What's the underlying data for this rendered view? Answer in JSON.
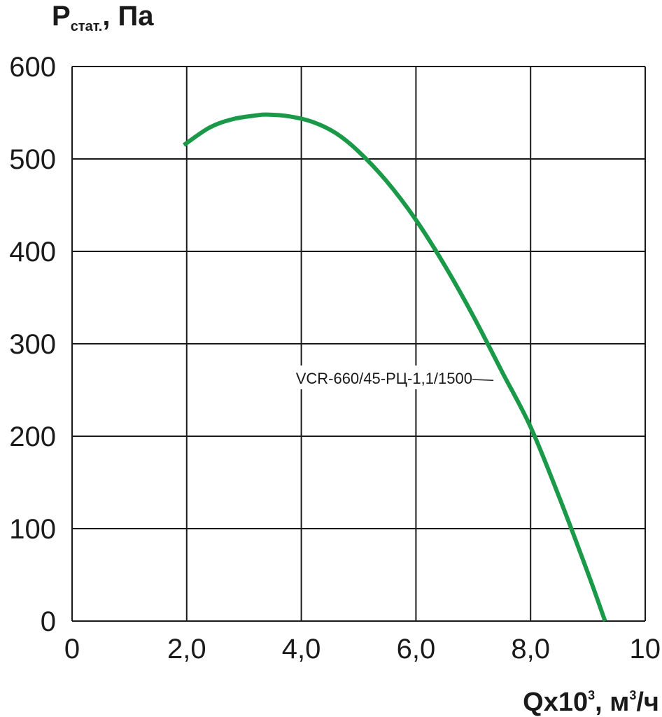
{
  "chart_data": {
    "type": "line",
    "ylabel": {
      "main": "P",
      "sub": "стат.",
      "tail": ", Па"
    },
    "xlabel": {
      "main": "Qx10",
      "sup1": "3",
      "mid": ", м",
      "sup2": "3",
      "tail": "/ч"
    },
    "xlim": [
      0,
      10
    ],
    "ylim": [
      0,
      600
    ],
    "x_ticks": [
      {
        "value": 0,
        "label": "0"
      },
      {
        "value": 2,
        "label": "2,0"
      },
      {
        "value": 4,
        "label": "4,0"
      },
      {
        "value": 6,
        "label": "6,0"
      },
      {
        "value": 8,
        "label": "8,0"
      },
      {
        "value": 10,
        "label": "10"
      }
    ],
    "y_ticks": [
      {
        "value": 0,
        "label": "0"
      },
      {
        "value": 100,
        "label": "100"
      },
      {
        "value": 200,
        "label": "200"
      },
      {
        "value": 300,
        "label": "300"
      },
      {
        "value": 400,
        "label": "400"
      },
      {
        "value": 500,
        "label": "500"
      },
      {
        "value": 600,
        "label": "600"
      }
    ],
    "grid": true,
    "series": [
      {
        "name": "VCR-660/45-РЦ-1,1/1500",
        "color": "#1a9a48",
        "x": [
          1.95,
          2.4,
          2.8,
          3.2,
          3.4,
          3.8,
          4.2,
          4.6,
          5.0,
          5.5,
          6.0,
          6.5,
          7.0,
          7.5,
          8.0,
          8.5,
          9.0,
          9.3
        ],
        "y": [
          515,
          534,
          543,
          547,
          548,
          546,
          540,
          528,
          508,
          475,
          434,
          385,
          330,
          270,
          210,
          134,
          52,
          0
        ]
      }
    ],
    "annotations": [
      {
        "text": "VCR-660/45-РЦ-1,1/1500",
        "x": 7.4,
        "y": 265
      }
    ]
  }
}
